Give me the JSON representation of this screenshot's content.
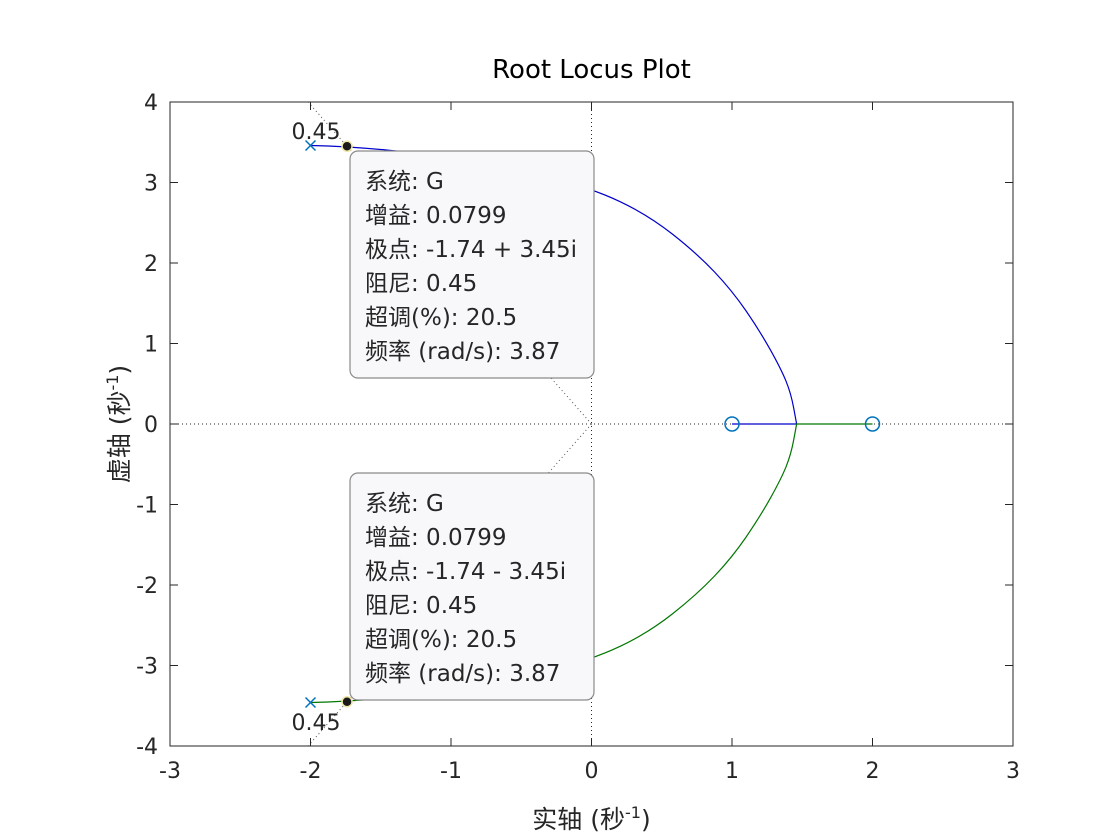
{
  "chart_data": {
    "type": "line",
    "title": "Root Locus Plot",
    "xlabel": {
      "main": "实轴 (秒",
      "sup": "-1",
      "end": ")"
    },
    "ylabel": {
      "main": "虚轴 (秒",
      "sup": "-1",
      "end": ")"
    },
    "xlim": [
      -3,
      3
    ],
    "ylim": [
      -4,
      4
    ],
    "xticks": [
      -3,
      -2,
      -1,
      0,
      1,
      2,
      3
    ],
    "yticks": [
      -4,
      -3,
      -2,
      -1,
      0,
      1,
      2,
      3,
      4
    ],
    "xtick_labels": [
      "-3",
      "-2",
      "-1",
      "0",
      "1",
      "2",
      "3"
    ],
    "ytick_labels": [
      "-4",
      "-3",
      "-2",
      "-1",
      "0",
      "1",
      "2",
      "3",
      "4"
    ],
    "grid": false,
    "colors": {
      "branch_upper": "#0000cc",
      "branch_lower": "#007700",
      "markers": "#0072bd",
      "datatip_dot": "#1a1a1a"
    },
    "poles": [
      {
        "x": -2,
        "y": 3.46
      },
      {
        "x": -2,
        "y": -3.46
      }
    ],
    "zeros": [
      {
        "x": 1,
        "y": 0
      },
      {
        "x": 2,
        "y": 0
      }
    ],
    "breakaway": {
      "x": 1.46,
      "y": 0
    },
    "series": [
      {
        "values": [
          [
            -2,
            3.46
          ],
          [
            -1.74,
            3.45
          ],
          [
            -1.2,
            3.36
          ],
          [
            -0.6,
            3.2
          ],
          [
            0,
            2.93
          ],
          [
            0.4,
            2.6
          ],
          [
            0.75,
            2.12
          ],
          [
            1.0,
            1.66
          ],
          [
            1.2,
            1.15
          ],
          [
            1.35,
            0.68
          ],
          [
            1.42,
            0.38
          ],
          [
            1.46,
            0
          ],
          [
            1,
            0
          ]
        ]
      },
      {
        "values": [
          [
            -2,
            -3.46
          ],
          [
            -1.74,
            -3.45
          ],
          [
            -1.2,
            -3.36
          ],
          [
            -0.6,
            -3.2
          ],
          [
            0,
            -2.93
          ],
          [
            0.4,
            -2.6
          ],
          [
            0.75,
            -2.12
          ],
          [
            1.0,
            -1.66
          ],
          [
            1.2,
            -1.15
          ],
          [
            1.35,
            -0.68
          ],
          [
            1.42,
            -0.38
          ],
          [
            1.46,
            0
          ],
          [
            2,
            0
          ]
        ]
      }
    ],
    "damping_line_label": "0.45",
    "datatips": [
      {
        "anchor": {
          "x": -1.74,
          "y": 3.45
        },
        "lines": [
          "系统: G",
          "增益: 0.0799",
          "极点: -1.74 + 3.45i",
          "阻尼: 0.45",
          "超调(%): 20.5",
          "频率 (rad/s): 3.87"
        ]
      },
      {
        "anchor": {
          "x": -1.74,
          "y": -3.45
        },
        "lines": [
          "系统: G",
          "增益: 0.0799",
          "极点: -1.74 - 3.45i",
          "阻尼: 0.45",
          "超调(%): 20.5",
          "频率 (rad/s): 3.87"
        ]
      }
    ]
  }
}
